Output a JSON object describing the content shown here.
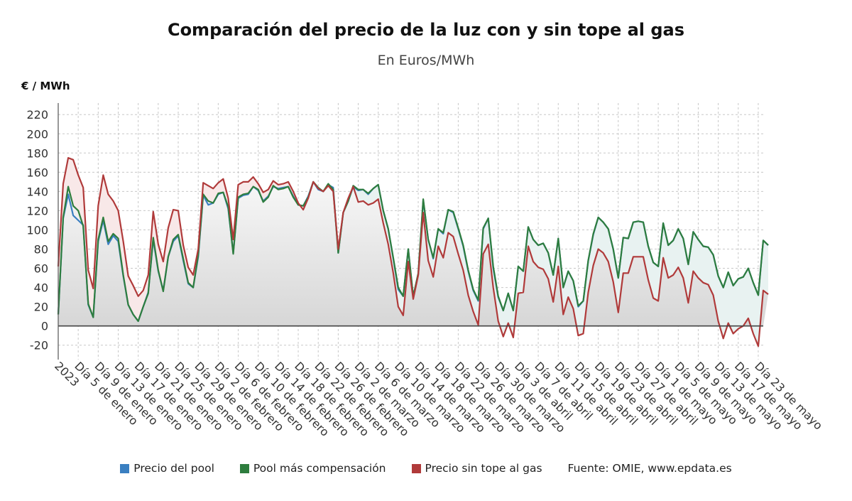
{
  "chart_data": {
    "type": "line",
    "title": "Comparación del precio de la luz con y sin tope al gas",
    "subtitle": "En Euros/MWh",
    "ylabel": "€ / MWh",
    "ylim": [
      -35,
      232
    ],
    "yticks": [
      -20,
      0,
      20,
      40,
      60,
      80,
      100,
      120,
      140,
      160,
      180,
      200,
      220
    ],
    "grid": true,
    "legend_position": "bottom",
    "x_tick_labels": [
      "2023",
      "Día 5 de enero",
      "Día 9 de enero",
      "Día 13 de enero",
      "Día 17 de enero",
      "Día 21 de enero",
      "Día 25 de enero",
      "Día 29 de enero",
      "Día 2 de febrero",
      "Día 6 de febrero",
      "Día 10 de febrero",
      "Día 14 de febrero",
      "Día 18 de febrero",
      "Día 22 de febrero",
      "Día 26 de febrero",
      "Día 2 de marzo",
      "Día 6 de marzo",
      "Día 10 de marzo",
      "Día 14 de marzo",
      "Día 18 de marzo",
      "Día 22 de marzo",
      "Día 26 de marzo",
      "Día 30 de marzo",
      "Día 3 de abril",
      "Día 7 de abril",
      "Día 11 de abril",
      "Día 15 de abril",
      "Día 19 de abril",
      "Día 23 de abril",
      "Día 27 de abril",
      "Día 1 de mayo",
      "Día 5 de mayo",
      "Día 9 de mayo",
      "Día 13 de mayo",
      "Día 17 de mayo",
      "Día 23 de mayo"
    ],
    "x_tick_days": [
      1,
      5,
      9,
      13,
      17,
      21,
      25,
      29,
      33,
      37,
      41,
      45,
      49,
      53,
      57,
      61,
      65,
      69,
      73,
      77,
      81,
      85,
      89,
      93,
      97,
      101,
      105,
      109,
      113,
      117,
      121,
      125,
      129,
      133,
      137,
      141
    ],
    "day_count": 142,
    "series": [
      {
        "name": "Precio del pool",
        "color": "#3a7fc1",
        "values": [
          12,
          112,
          137,
          115,
          110,
          105,
          22,
          9,
          88,
          110,
          85,
          94,
          88,
          52,
          22,
          12,
          5,
          20,
          35,
          90,
          57,
          37,
          72,
          88,
          94,
          68,
          44,
          40,
          72,
          136,
          126,
          128,
          137,
          139,
          122,
          76,
          133,
          136,
          137,
          145,
          141,
          130,
          135,
          145,
          143,
          144,
          145,
          135,
          126,
          125,
          135,
          150,
          142,
          140,
          147,
          144,
          76,
          118,
          130,
          145,
          141,
          142,
          137,
          143,
          147,
          120,
          101,
          70,
          38,
          31,
          80,
          30,
          54,
          131,
          90,
          70,
          101,
          96,
          121,
          118,
          101,
          83,
          57,
          37,
          26,
          101,
          112,
          60,
          30,
          16,
          34,
          16,
          62,
          57,
          103,
          90,
          84,
          86,
          76,
          53,
          91,
          40,
          57,
          47,
          20,
          26,
          68,
          95,
          113,
          108,
          101,
          80,
          50,
          92,
          91,
          108,
          109,
          108,
          83,
          66,
          62,
          107,
          84,
          89,
          101,
          91,
          64,
          98,
          90,
          83,
          82,
          74,
          52,
          40,
          56,
          42,
          49,
          51,
          60,
          45,
          32,
          89,
          84
        ]
      },
      {
        "name": "Pool más compensación",
        "color": "#2e7d3e",
        "values": [
          12,
          113,
          145,
          125,
          120,
          104,
          23,
          9,
          90,
          113,
          88,
          96,
          91,
          53,
          22,
          12,
          5,
          20,
          34,
          92,
          58,
          36,
          72,
          90,
          95,
          70,
          45,
          40,
          74,
          137,
          130,
          128,
          138,
          139,
          124,
          75,
          134,
          137,
          138,
          145,
          142,
          129,
          134,
          146,
          142,
          143,
          145,
          134,
          126,
          125,
          134,
          150,
          144,
          140,
          148,
          142,
          76,
          118,
          130,
          146,
          142,
          142,
          138,
          143,
          147,
          120,
          101,
          71,
          40,
          31,
          80,
          31,
          55,
          132,
          90,
          71,
          101,
          97,
          121,
          119,
          102,
          84,
          58,
          38,
          27,
          102,
          112,
          62,
          31,
          16,
          34,
          16,
          62,
          57,
          103,
          90,
          84,
          86,
          76,
          53,
          91,
          40,
          57,
          47,
          21,
          26,
          68,
          96,
          113,
          108,
          101,
          80,
          50,
          92,
          91,
          108,
          109,
          108,
          83,
          66,
          62,
          107,
          84,
          89,
          101,
          91,
          64,
          98,
          90,
          83,
          82,
          74,
          52,
          40,
          56,
          42,
          49,
          51,
          60,
          45,
          32,
          89,
          84
        ]
      },
      {
        "name": "Precio sin tope al gas",
        "color": "#b03a3a",
        "values": [
          62,
          148,
          175,
          173,
          157,
          144,
          58,
          39,
          125,
          157,
          137,
          130,
          120,
          88,
          52,
          42,
          31,
          37,
          53,
          119,
          85,
          67,
          102,
          121,
          120,
          84,
          61,
          53,
          80,
          149,
          146,
          143,
          149,
          153,
          133,
          90,
          147,
          150,
          150,
          155,
          148,
          139,
          142,
          151,
          147,
          148,
          150,
          140,
          128,
          121,
          133,
          150,
          143,
          140,
          146,
          140,
          80,
          118,
          133,
          145,
          129,
          130,
          126,
          128,
          132,
          107,
          85,
          55,
          20,
          11,
          67,
          28,
          53,
          118,
          68,
          51,
          83,
          71,
          97,
          93,
          75,
          58,
          32,
          15,
          1,
          75,
          85,
          40,
          5,
          -11,
          3,
          -12,
          34,
          35,
          83,
          67,
          61,
          59,
          49,
          25,
          62,
          12,
          30,
          18,
          -10,
          -8,
          35,
          63,
          80,
          76,
          67,
          46,
          14,
          55,
          55,
          72,
          72,
          72,
          48,
          29,
          26,
          71,
          50,
          53,
          61,
          50,
          24,
          57,
          50,
          45,
          43,
          32,
          5,
          -13,
          3,
          -8,
          -3,
          0,
          8,
          -8,
          -21,
          37,
          33
        ]
      }
    ],
    "source_text": "Fuente: OMIE, www.epdata.es"
  }
}
